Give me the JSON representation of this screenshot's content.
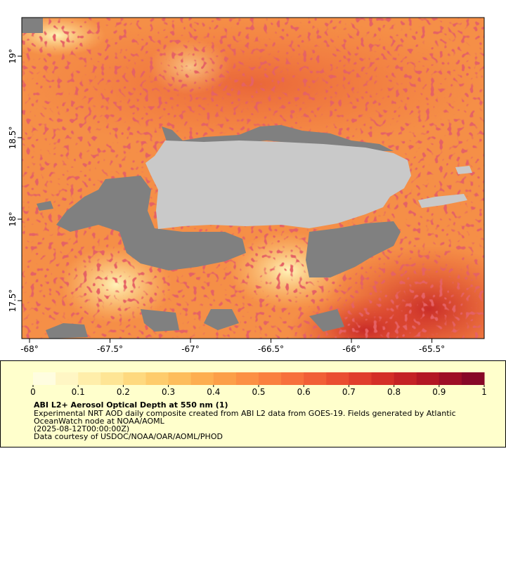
{
  "map": {
    "xlim": [
      -68.048,
      -65.175
    ],
    "ylim": [
      17.267,
      19.237
    ],
    "xticks": [
      {
        "value": -68,
        "label": "-68°"
      },
      {
        "value": -67.5,
        "label": "-67.5°"
      },
      {
        "value": -67,
        "label": "-67°"
      },
      {
        "value": -66.5,
        "label": "-66.5°"
      },
      {
        "value": -66,
        "label": "-66°"
      },
      {
        "value": -65.5,
        "label": "-65.5°"
      }
    ],
    "yticks": [
      {
        "value": 17.5,
        "label": "17.5°"
      },
      {
        "value": 18,
        "label": "18°"
      },
      {
        "value": 18.5,
        "label": "18.5°"
      },
      {
        "value": 19,
        "label": "19°"
      }
    ]
  },
  "colorbar": {
    "lim": [
      0,
      1
    ],
    "ticks": [
      0,
      0.1,
      0.2,
      0.3,
      0.4,
      0.5,
      0.6,
      0.7,
      0.8,
      0.9,
      1
    ],
    "colors": [
      "#fffde0",
      "#fff6c4",
      "#ffeeaa",
      "#fee595",
      "#fed97f",
      "#fecc6c",
      "#fdbd5c",
      "#fdae50",
      "#fc9f48",
      "#fc9044",
      "#fa8040",
      "#f7703b",
      "#f15f36",
      "#ea4e31",
      "#e03d2c",
      "#d42f27",
      "#c42225",
      "#b31724",
      "#9e0e26",
      "#870827"
    ]
  },
  "legend": {
    "title": "ABI L2+ Aerosol Optical Depth at 550 nm (1)",
    "lines": [
      "Experimental NRT AOD daily composite created from ABI L2 data from GOES-19. Fields generated by Atlantic",
      "OceanWatch node at NOAA/AOML",
      "(2025-08-12T00:00:00Z)",
      "Data courtesy of USDOC/NOAA/OAR/AOML/PHOD"
    ]
  }
}
